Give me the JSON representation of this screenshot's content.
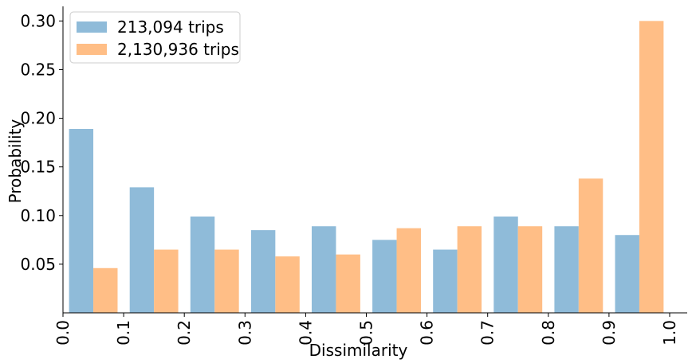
{
  "chart_data": {
    "type": "bar",
    "xlabel": "Dissimilarity",
    "ylabel": "Probability",
    "title": "",
    "xlim": [
      0.0,
      1.0
    ],
    "ylim": [
      0.0,
      0.315
    ],
    "x_ticks": [
      "0.0",
      "0.1",
      "0.2",
      "0.3",
      "0.4",
      "0.5",
      "0.6",
      "0.7",
      "0.8",
      "0.9",
      "1.0"
    ],
    "y_ticks": [
      "0.05",
      "0.10",
      "0.15",
      "0.20",
      "0.25",
      "0.30"
    ],
    "grid": false,
    "legend_position": "top-left",
    "bin_edges": [
      0.0,
      0.1,
      0.2,
      0.3,
      0.4,
      0.5,
      0.6,
      0.7,
      0.8,
      0.9,
      1.0
    ],
    "series": [
      {
        "name": "213,094 trips",
        "color": "#8fbbd9",
        "values": [
          0.189,
          0.129,
          0.099,
          0.085,
          0.089,
          0.075,
          0.065,
          0.099,
          0.089,
          0.08
        ]
      },
      {
        "name": "2,130,936 trips",
        "color": "#ffbe86",
        "values": [
          0.046,
          0.065,
          0.065,
          0.058,
          0.06,
          0.087,
          0.089,
          0.089,
          0.138,
          0.3
        ]
      }
    ]
  }
}
